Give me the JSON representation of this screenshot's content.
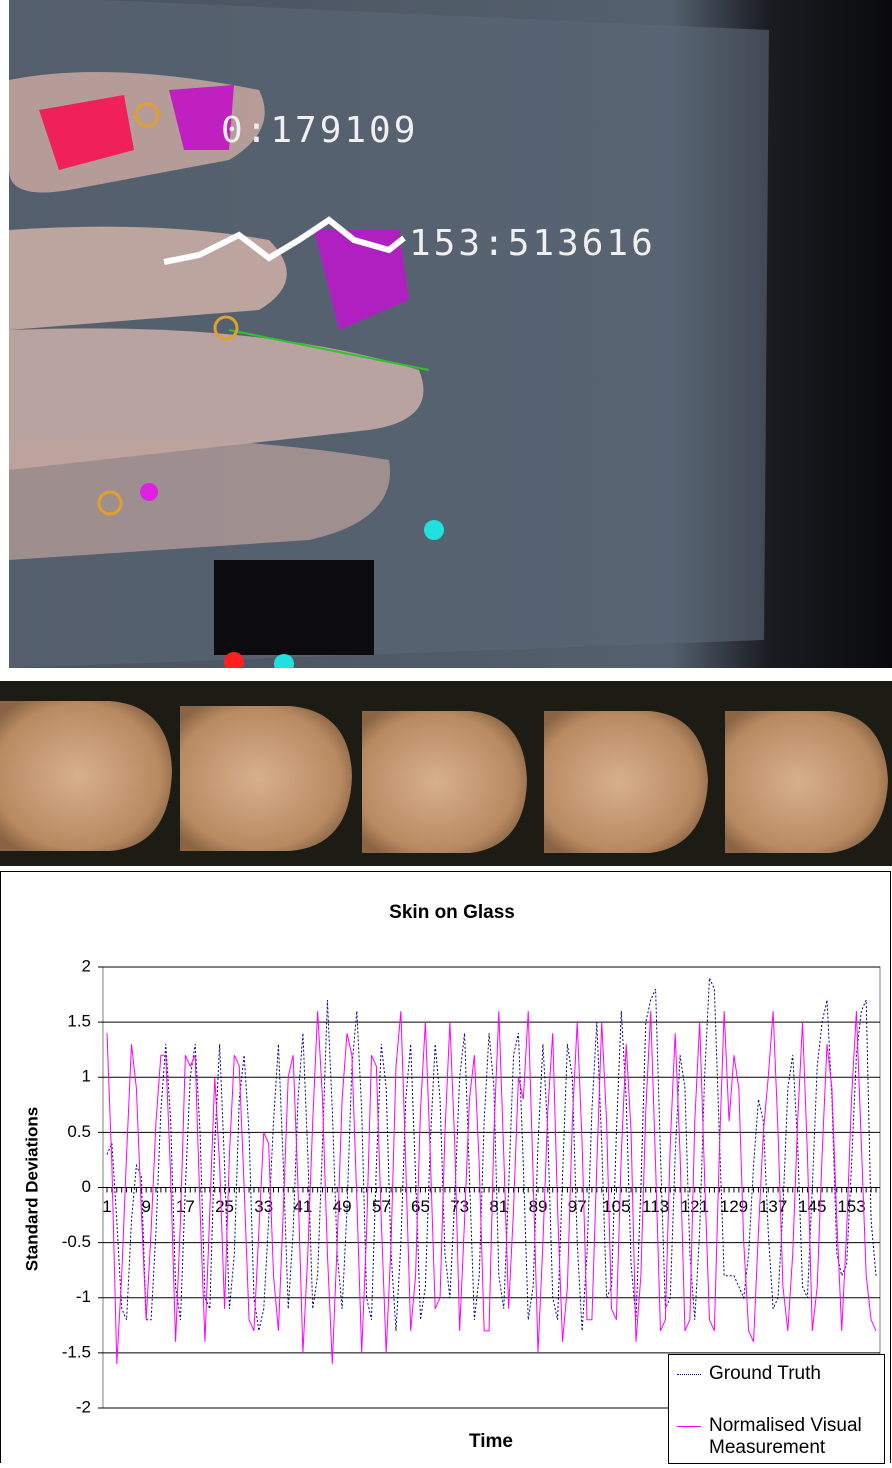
{
  "overlay_labels": [
    "0:179109",
    "153:513616"
  ],
  "chart_data": {
    "type": "line",
    "title": "Skin on Glass",
    "x_label": "Time",
    "y_label": "Standard Deviations",
    "categories": [
      "1",
      null,
      null,
      null,
      null,
      null,
      null,
      null,
      "9",
      null,
      null,
      null,
      null,
      null,
      null,
      null,
      "17",
      null,
      null,
      null,
      null,
      null,
      null,
      null,
      "25",
      null,
      null,
      null,
      null,
      null,
      null,
      null,
      "33",
      null,
      null,
      null,
      null,
      null,
      null,
      null,
      "41",
      null,
      null,
      null,
      null,
      null,
      null,
      null,
      "49",
      null,
      null,
      null,
      null,
      null,
      null,
      null,
      "57",
      null,
      null,
      null,
      null,
      null,
      null,
      null,
      "65",
      null,
      null,
      null,
      null,
      null,
      null,
      null,
      "73",
      null,
      null,
      null,
      null,
      null,
      null,
      null,
      "81",
      null,
      null,
      null,
      null,
      null,
      null,
      null,
      "89",
      null,
      null,
      null,
      null,
      null,
      null,
      null,
      "97",
      null,
      null,
      null,
      null,
      null,
      null,
      null,
      "105",
      null,
      null,
      null,
      null,
      null,
      null,
      null,
      "113",
      null,
      null,
      null,
      null,
      null,
      null,
      null,
      "121",
      null,
      null,
      null,
      null,
      null,
      null,
      null,
      "129",
      null,
      null,
      null,
      null,
      null,
      null,
      null,
      "137",
      null,
      null,
      null,
      null,
      null,
      null,
      null,
      "145",
      null,
      null,
      null,
      null,
      null,
      null,
      null,
      "153",
      null,
      null,
      null,
      null,
      null
    ],
    "series": [
      {
        "name": "Ground Truth",
        "color": "#000080",
        "dashed": true,
        "values": [
          0.3,
          0.4,
          -0.3,
          -1.1,
          -1.2,
          -0.3,
          0.2,
          0.1,
          -1.2,
          -1.2,
          -0.4,
          0.7,
          1.3,
          0.6,
          -0.9,
          -1.2,
          0.0,
          1.0,
          1.3,
          0.5,
          -1.0,
          -1.1,
          0.4,
          1.3,
          0.2,
          -1.1,
          -0.6,
          0.8,
          1.2,
          0.5,
          -1.0,
          -1.3,
          -1.1,
          -0.3,
          0.6,
          1.3,
          0.2,
          -1.1,
          -0.4,
          0.8,
          1.4,
          0.3,
          -1.1,
          -0.8,
          0.4,
          1.7,
          0.7,
          -0.6,
          -1.1,
          -0.2,
          1.1,
          1.6,
          0.7,
          -1.0,
          -1.2,
          0.2,
          1.3,
          0.9,
          -0.6,
          -1.3,
          -0.5,
          0.8,
          1.3,
          0.1,
          -1.2,
          -0.9,
          0.4,
          1.3,
          0.8,
          -0.6,
          -1.0,
          -0.1,
          1.0,
          1.4,
          0.1,
          -1.2,
          -0.8,
          0.6,
          1.4,
          0.9,
          -0.8,
          -1.1,
          0.0,
          1.2,
          1.4,
          0.2,
          -1.2,
          -0.9,
          0.4,
          1.3,
          0.5,
          -1.0,
          -1.2,
          0.1,
          1.3,
          1.0,
          -0.5,
          -1.3,
          -0.6,
          0.7,
          1.5,
          0.4,
          -1.0,
          -0.9,
          0.5,
          1.6,
          0.8,
          -0.7,
          -1.2,
          0.0,
          1.5,
          1.7,
          1.8,
          0.3,
          -1.1,
          -1.0,
          0.3,
          1.2,
          0.9,
          -0.6,
          -1.2,
          -0.4,
          1.0,
          1.9,
          1.8,
          0.5,
          -0.8,
          -0.8,
          -0.8,
          -0.9,
          -1.0,
          -0.6,
          0.2,
          0.8,
          0.6,
          -0.4,
          -1.1,
          -1.0,
          -0.2,
          0.9,
          1.2,
          0.4,
          -0.9,
          -1.0,
          0.0,
          1.1,
          1.5,
          1.7,
          0.8,
          -0.6,
          -0.8,
          -0.7,
          0.2,
          1.2,
          1.6,
          1.7,
          -0.3,
          -0.8
        ]
      },
      {
        "name": "Normalised Visual Measurement",
        "color": "#ff00ff",
        "dashed": false,
        "values": [
          1.4,
          0.2,
          -1.6,
          -0.8,
          0.3,
          1.3,
          0.9,
          -0.2,
          -1.2,
          -0.4,
          0.6,
          1.2,
          1.2,
          0.1,
          -1.4,
          -0.3,
          1.2,
          1.1,
          1.2,
          -0.2,
          -1.4,
          -0.2,
          1.0,
          0.2,
          -1.1,
          0.3,
          1.2,
          1.1,
          0.0,
          -1.2,
          -1.3,
          -0.4,
          0.5,
          0.4,
          -0.8,
          -1.3,
          -0.2,
          1.0,
          1.2,
          0.0,
          -1.5,
          -0.6,
          0.6,
          1.6,
          0.8,
          -0.6,
          -1.6,
          -0.5,
          0.8,
          1.4,
          1.2,
          -0.1,
          -1.5,
          -0.4,
          1.2,
          1.1,
          -0.3,
          -1.5,
          -0.5,
          1.1,
          1.6,
          0.2,
          -1.3,
          -0.8,
          0.7,
          1.5,
          0.3,
          -1.1,
          -1.0,
          0.5,
          1.5,
          0.4,
          -1.3,
          -0.3,
          0.8,
          1.2,
          0.2,
          -1.3,
          -1.3,
          0.5,
          1.6,
          0.3,
          -1.1,
          -0.2,
          1.0,
          0.8,
          1.6,
          0.1,
          -1.5,
          -0.5,
          0.7,
          1.4,
          -0.2,
          -1.4,
          -0.9,
          0.6,
          1.5,
          0.4,
          -1.2,
          -1.2,
          0.2,
          1.5,
          0.6,
          -1.1,
          -1.2,
          0.3,
          1.3,
          0.5,
          -1.4,
          -0.8,
          0.7,
          1.6,
          0.2,
          -1.3,
          -1.2,
          0.4,
          1.4,
          0.3,
          -1.3,
          -1.2,
          0.6,
          1.5,
          0.1,
          -1.2,
          -1.3,
          0.3,
          1.6,
          0.6,
          1.2,
          0.9,
          -0.5,
          -1.3,
          -1.4,
          -0.4,
          0.5,
          1.0,
          1.6,
          0.5,
          -0.9,
          -1.3,
          -0.6,
          0.6,
          1.5,
          0.3,
          -1.3,
          -0.9,
          0.3,
          1.3,
          0.9,
          -0.3,
          -1.3,
          -0.4,
          0.8,
          1.6,
          0.4,
          -0.8,
          -1.2,
          -1.3
        ]
      }
    ],
    "ylim": [
      -2,
      2
    ],
    "yticks": [
      -2,
      -1.5,
      -1,
      -0.5,
      0,
      0.5,
      1,
      1.5,
      2
    ],
    "grid": true,
    "legend": "lower right"
  }
}
